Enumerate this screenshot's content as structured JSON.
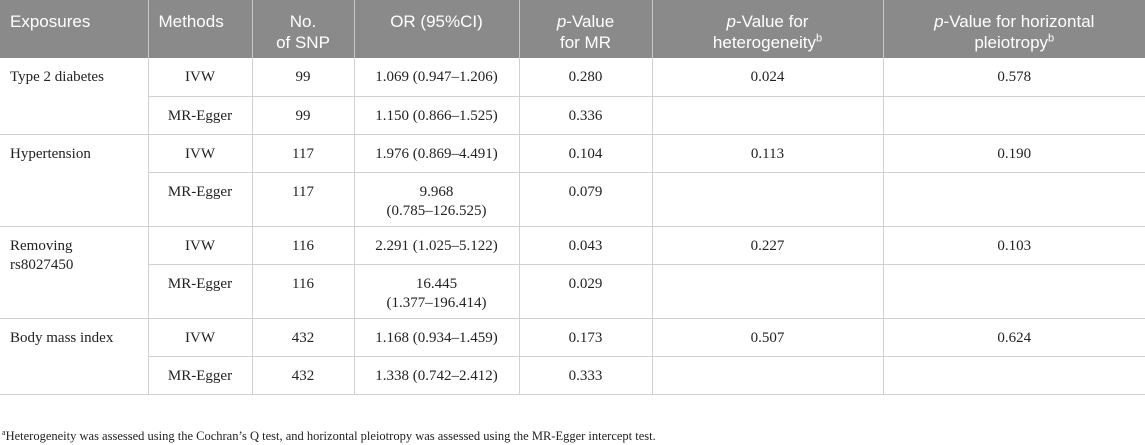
{
  "table": {
    "headers": {
      "exposures": "Exposures",
      "methods": "Methods",
      "nsnp_line1": "No.",
      "nsnp_line2": "of SNP",
      "or": "OR (95%CI)",
      "pmr_italic": "p",
      "pmr_rest": "-Value",
      "pmr_line2": "for MR",
      "phet_italic": "p",
      "phet_rest": "-Value for",
      "phet_line2": "heterogeneity",
      "phet_sup": "b",
      "ppleio_italic": "p",
      "ppleio_rest": "-Value for horizontal",
      "ppleio_line2": "pleiotropy",
      "ppleio_sup": "b"
    },
    "groups": [
      {
        "exposure": "Type 2 diabetes",
        "ivw": {
          "method": "IVW",
          "nsnp": "99",
          "or": "1.069 (0.947–1.206)",
          "p_mr": "0.280"
        },
        "egger": {
          "method": "MR-Egger",
          "nsnp": "99",
          "or": "1.150 (0.866–1.525)",
          "p_mr": "0.336"
        },
        "p_het": "0.024",
        "p_pleio": "0.578"
      },
      {
        "exposure": "Hypertension",
        "ivw": {
          "method": "IVW",
          "nsnp": "117",
          "or": "1.976 (0.869–4.491)",
          "p_mr": "0.104"
        },
        "egger": {
          "method": "MR-Egger",
          "nsnp": "117",
          "or_line1": "9.968",
          "or_line2": "(0.785–126.525)",
          "p_mr": "0.079"
        },
        "p_het": "0.113",
        "p_pleio": "0.190"
      },
      {
        "exposure_line1": "Removing",
        "exposure_line2": "rs8027450",
        "ivw": {
          "method": "IVW",
          "nsnp": "116",
          "or": "2.291 (1.025–5.122)",
          "p_mr": "0.043"
        },
        "egger": {
          "method": "MR-Egger",
          "nsnp": "116",
          "or_line1": "16.445",
          "or_line2": "(1.377–196.414)",
          "p_mr": "0.029"
        },
        "p_het": "0.227",
        "p_pleio": "0.103"
      },
      {
        "exposure": "Body mass index",
        "ivw": {
          "method": "IVW",
          "nsnp": "432",
          "or": "1.168 (0.934–1.459)",
          "p_mr": "0.173"
        },
        "egger": {
          "method": "MR-Egger",
          "nsnp": "432",
          "or": "1.338 (0.742–2.412)",
          "p_mr": "0.333"
        },
        "p_het": "0.507",
        "p_pleio": "0.624"
      }
    ]
  },
  "footnote": {
    "marker": "a",
    "text": "Heterogeneity was assessed using the Cochran’s Q test, and horizontal pleiotropy was assessed using the MR-Egger intercept test."
  }
}
